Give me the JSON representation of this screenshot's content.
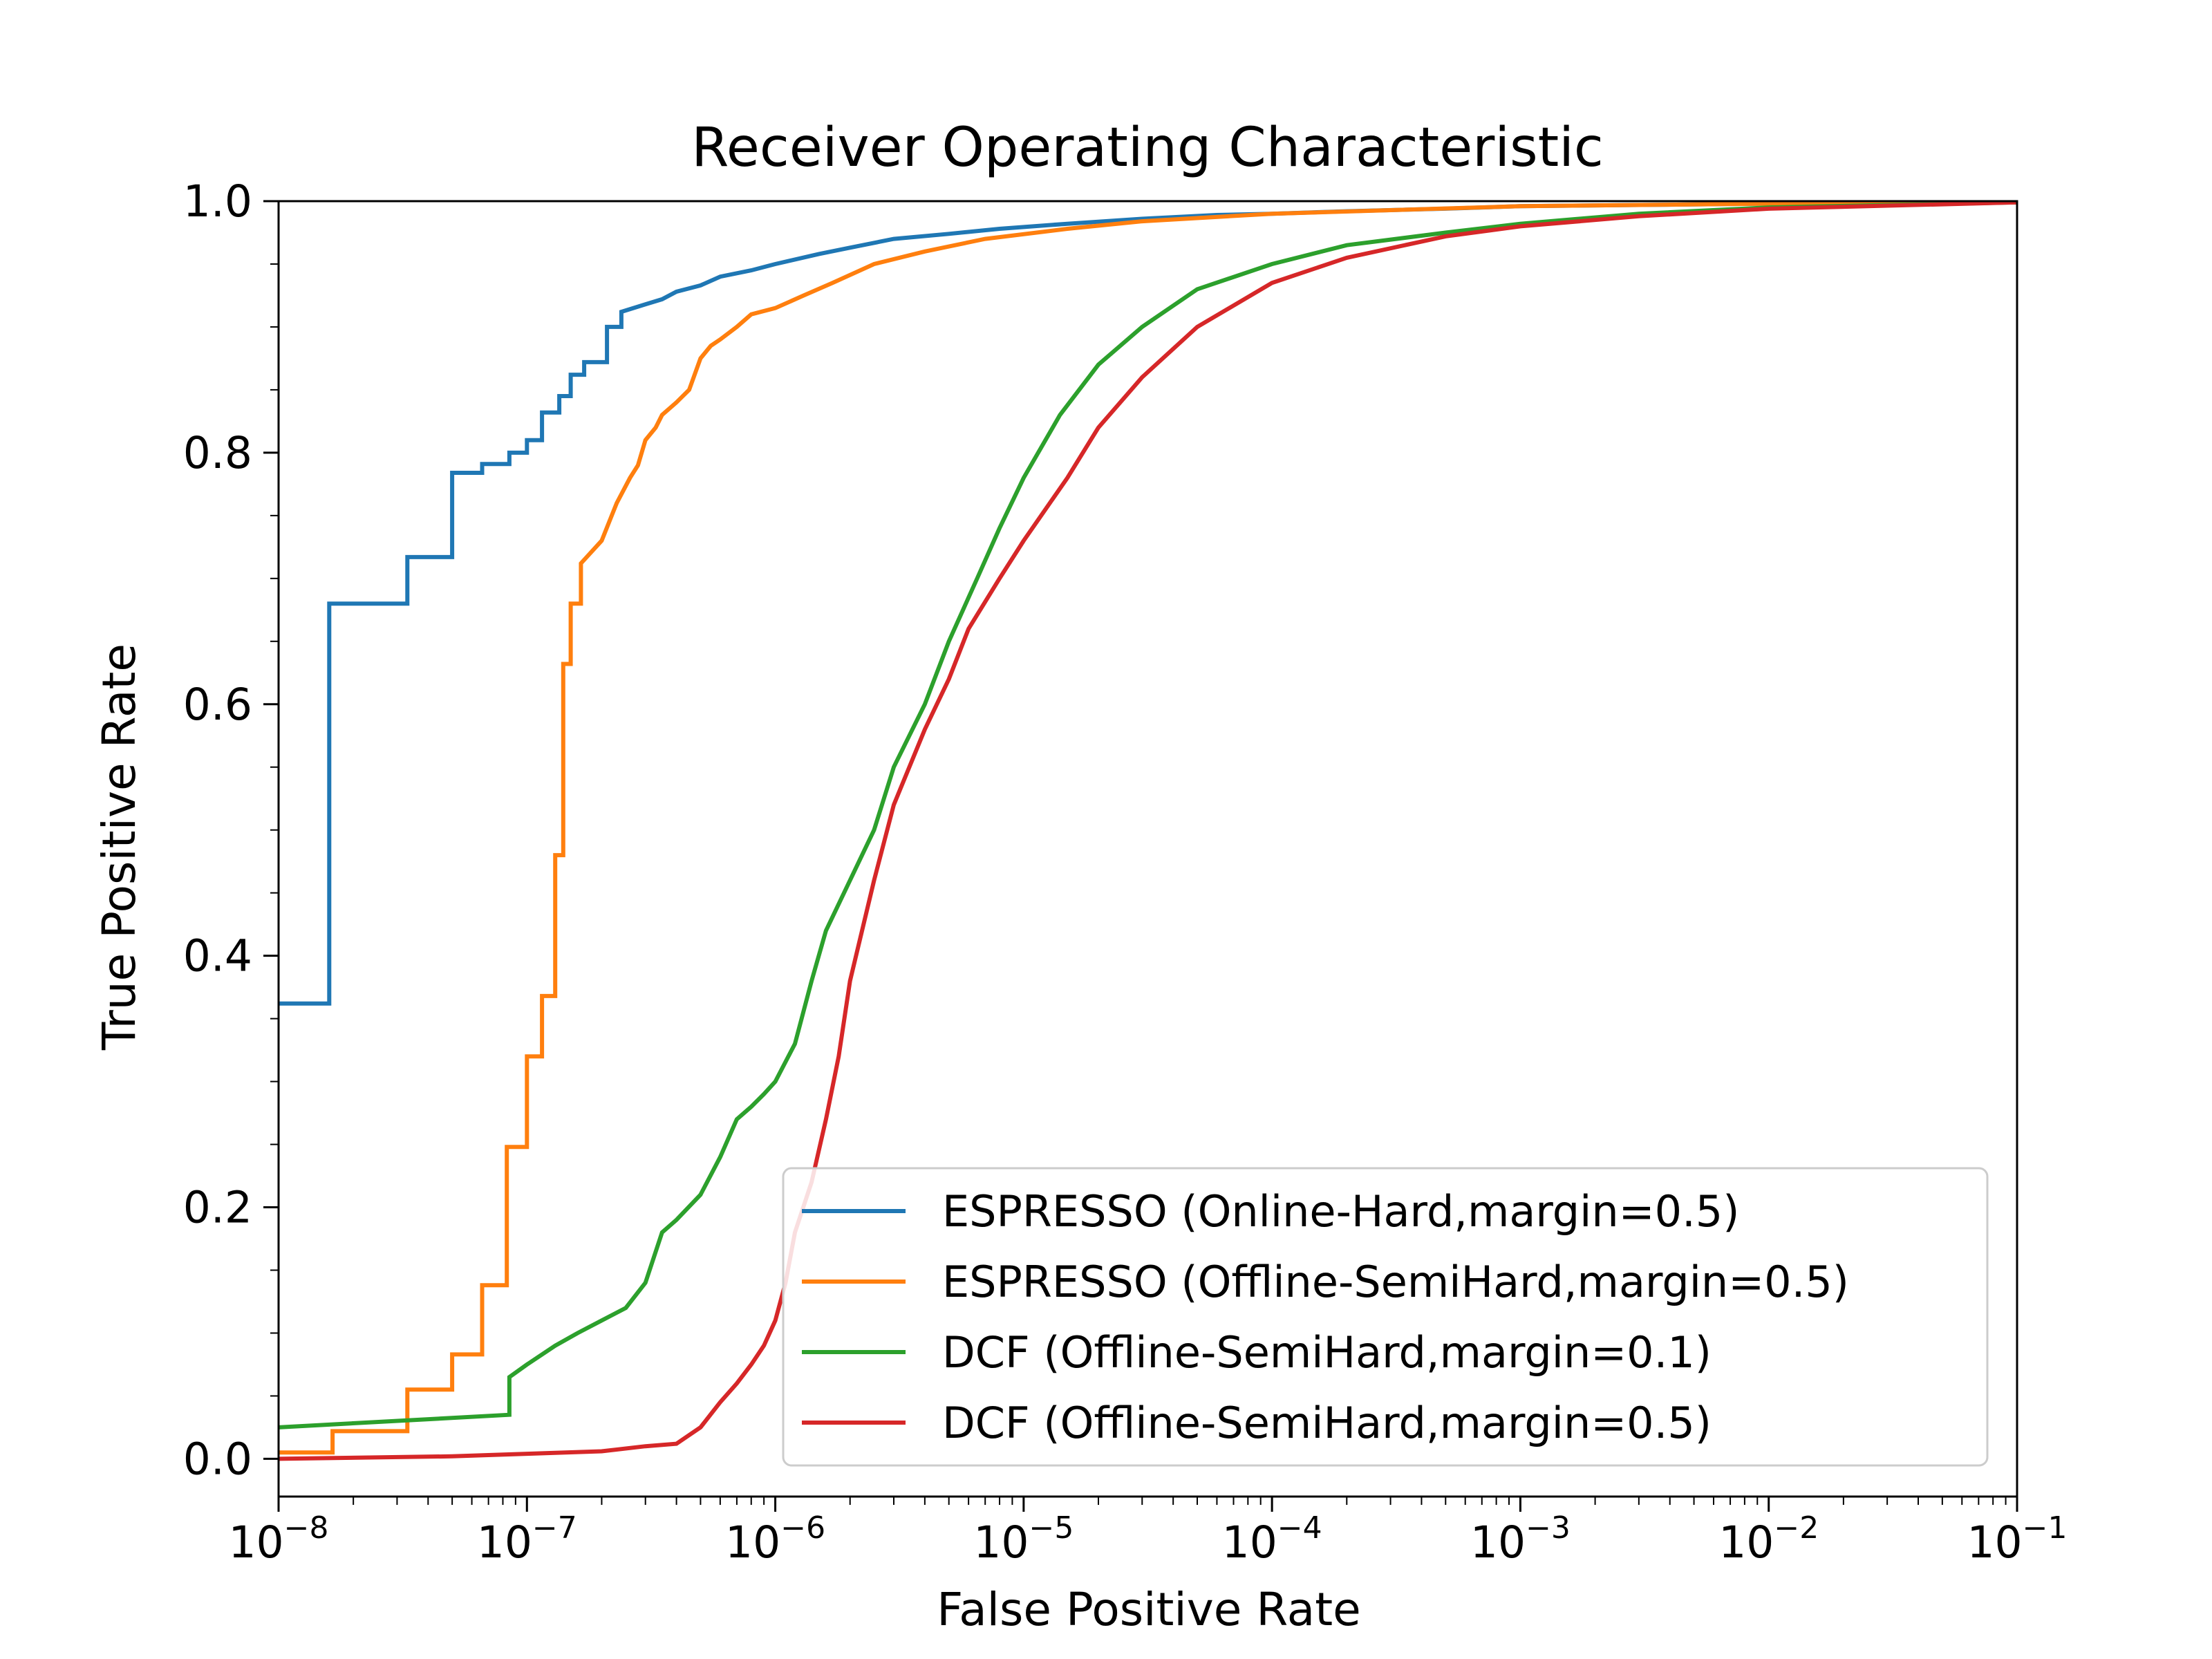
{
  "chart_data": {
    "type": "line",
    "title": "Receiver Operating Characteristic",
    "xlabel": "False Positive Rate",
    "ylabel": "True Positive Rate",
    "xscale": "log",
    "xlim": [
      1e-08,
      0.1
    ],
    "ylim": [
      -0.03,
      1.0
    ],
    "x_ticks": [
      {
        "value": 1e-08,
        "base": "10",
        "exp": "−8"
      },
      {
        "value": 1e-07,
        "base": "10",
        "exp": "−7"
      },
      {
        "value": 1e-06,
        "base": "10",
        "exp": "−6"
      },
      {
        "value": 1e-05,
        "base": "10",
        "exp": "−5"
      },
      {
        "value": 0.0001,
        "base": "10",
        "exp": "−4"
      },
      {
        "value": 0.001,
        "base": "10",
        "exp": "−3"
      },
      {
        "value": 0.01,
        "base": "10",
        "exp": "−2"
      },
      {
        "value": 0.1,
        "base": "10",
        "exp": "−1"
      }
    ],
    "y_ticks": [
      {
        "value": 0.0,
        "label": "0.0"
      },
      {
        "value": 0.2,
        "label": "0.2"
      },
      {
        "value": 0.4,
        "label": "0.4"
      },
      {
        "value": 0.6,
        "label": "0.6"
      },
      {
        "value": 0.8,
        "label": "0.8"
      },
      {
        "value": 1.0,
        "label": "1.0"
      }
    ],
    "grid": false,
    "legend_position": "lower-right",
    "series": [
      {
        "name": "ESPRESSO (Online-Hard,margin=0.5)",
        "color": "#1f77b4",
        "x": [
          1e-08,
          1.6e-08,
          1.6e-08,
          3.3e-08,
          3.3e-08,
          5e-08,
          5e-08,
          6.6e-08,
          6.6e-08,
          8.5e-08,
          8.5e-08,
          1e-07,
          1e-07,
          1.15e-07,
          1.15e-07,
          1.35e-07,
          1.35e-07,
          1.5e-07,
          1.5e-07,
          1.7e-07,
          1.7e-07,
          2.1e-07,
          2.1e-07,
          2.4e-07,
          2.4e-07,
          3e-07,
          3.5e-07,
          4e-07,
          5e-07,
          6e-07,
          8e-07,
          1e-06,
          1.5e-06,
          2e-06,
          3e-06,
          5e-06,
          8e-06,
          1.5e-05,
          3e-05,
          6e-05,
          0.0001,
          0.0002,
          0.0005,
          0.001,
          0.003,
          0.01,
          0.03,
          0.1
        ],
        "y": [
          0.362,
          0.362,
          0.68,
          0.68,
          0.717,
          0.717,
          0.784,
          0.784,
          0.791,
          0.791,
          0.8,
          0.8,
          0.81,
          0.81,
          0.832,
          0.832,
          0.845,
          0.845,
          0.862,
          0.862,
          0.872,
          0.872,
          0.9,
          0.9,
          0.912,
          0.918,
          0.922,
          0.928,
          0.933,
          0.94,
          0.945,
          0.95,
          0.958,
          0.963,
          0.97,
          0.974,
          0.978,
          0.982,
          0.986,
          0.989,
          0.99,
          0.992,
          0.994,
          0.996,
          0.997,
          0.998,
          0.999,
          0.999
        ]
      },
      {
        "name": "ESPRESSO (Offline-SemiHard,margin=0.5)",
        "color": "#ff7f0e",
        "x": [
          1e-08,
          1.65e-08,
          1.65e-08,
          3.3e-08,
          3.3e-08,
          5e-08,
          5e-08,
          6.6e-08,
          6.6e-08,
          8.3e-08,
          8.3e-08,
          1e-07,
          1e-07,
          1.15e-07,
          1.15e-07,
          1.3e-07,
          1.3e-07,
          1.4e-07,
          1.4e-07,
          1.5e-07,
          1.5e-07,
          1.65e-07,
          1.65e-07,
          2e-07,
          2.3e-07,
          2.6e-07,
          2.8e-07,
          3e-07,
          3.3e-07,
          3.5e-07,
          4e-07,
          4.5e-07,
          5e-07,
          5.5e-07,
          6e-07,
          7e-07,
          8e-07,
          1e-06,
          1.3e-06,
          1.7e-06,
          2.5e-06,
          4e-06,
          7e-06,
          1.5e-05,
          3e-05,
          0.0001,
          0.001,
          0.01,
          0.1
        ],
        "y": [
          0.005,
          0.005,
          0.022,
          0.022,
          0.055,
          0.055,
          0.083,
          0.083,
          0.138,
          0.138,
          0.248,
          0.248,
          0.32,
          0.32,
          0.368,
          0.368,
          0.48,
          0.48,
          0.632,
          0.632,
          0.68,
          0.68,
          0.712,
          0.73,
          0.76,
          0.78,
          0.79,
          0.81,
          0.82,
          0.83,
          0.84,
          0.85,
          0.875,
          0.885,
          0.89,
          0.9,
          0.91,
          0.915,
          0.925,
          0.935,
          0.95,
          0.96,
          0.97,
          0.978,
          0.984,
          0.99,
          0.996,
          0.998,
          0.999
        ]
      },
      {
        "name": "DCF (Offline-SemiHard,margin=0.1)",
        "color": "#2ca02c",
        "x": [
          1e-08,
          8.5e-08,
          8.5e-08,
          1e-07,
          1.3e-07,
          1.6e-07,
          2e-07,
          2.5e-07,
          3e-07,
          3.5e-07,
          4e-07,
          5e-07,
          6e-07,
          7e-07,
          8e-07,
          9e-07,
          1e-06,
          1.2e-06,
          1.4e-06,
          1.6e-06,
          2e-06,
          2.5e-06,
          3e-06,
          4e-06,
          5e-06,
          6.5e-06,
          8e-06,
          1e-05,
          1.4e-05,
          2e-05,
          3e-05,
          5e-05,
          0.0001,
          0.0002,
          0.0005,
          0.001,
          0.003,
          0.01,
          0.1
        ],
        "y": [
          0.025,
          0.035,
          0.065,
          0.075,
          0.09,
          0.1,
          0.11,
          0.12,
          0.14,
          0.18,
          0.19,
          0.21,
          0.24,
          0.27,
          0.28,
          0.29,
          0.3,
          0.33,
          0.38,
          0.42,
          0.46,
          0.5,
          0.55,
          0.6,
          0.65,
          0.7,
          0.74,
          0.78,
          0.83,
          0.87,
          0.9,
          0.93,
          0.95,
          0.965,
          0.975,
          0.982,
          0.99,
          0.995,
          0.999
        ]
      },
      {
        "name": "DCF (Offline-SemiHard,margin=0.5)",
        "color": "#d62728",
        "x": [
          1e-08,
          5e-08,
          1e-07,
          2e-07,
          3e-07,
          4e-07,
          5e-07,
          6e-07,
          7e-07,
          8e-07,
          9e-07,
          1e-06,
          1.1e-06,
          1.2e-06,
          1.4e-06,
          1.6e-06,
          1.8e-06,
          2e-06,
          2.5e-06,
          3e-06,
          4e-06,
          5e-06,
          6e-06,
          8e-06,
          1e-05,
          1.5e-05,
          2e-05,
          3e-05,
          5e-05,
          0.0001,
          0.0002,
          0.0005,
          0.001,
          0.003,
          0.01,
          0.1
        ],
        "y": [
          0.0,
          0.002,
          0.004,
          0.006,
          0.01,
          0.012,
          0.025,
          0.045,
          0.06,
          0.075,
          0.09,
          0.11,
          0.14,
          0.18,
          0.22,
          0.27,
          0.32,
          0.38,
          0.46,
          0.52,
          0.58,
          0.62,
          0.66,
          0.7,
          0.73,
          0.78,
          0.82,
          0.86,
          0.9,
          0.935,
          0.955,
          0.972,
          0.98,
          0.988,
          0.994,
          0.999
        ]
      }
    ]
  }
}
